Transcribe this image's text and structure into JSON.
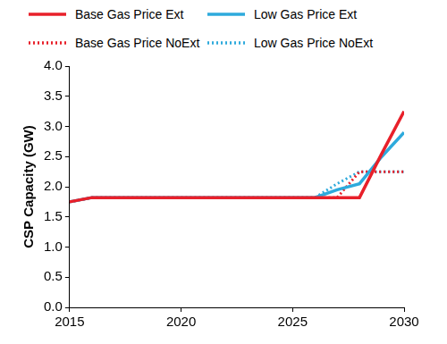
{
  "chart_data": {
    "type": "line",
    "y_label": "CSP Capacity (GW)",
    "legend": "top",
    "grid": false,
    "x": [
      2015,
      2016,
      2017,
      2018,
      2019,
      2020,
      2021,
      2022,
      2023,
      2024,
      2025,
      2026,
      2027,
      2028,
      2029,
      2030
    ],
    "xlim": [
      2015,
      2030
    ],
    "xticks": [
      2015,
      2020,
      2025,
      2030
    ],
    "ylim": [
      0,
      4
    ],
    "yticks": [
      {
        "value": 0,
        "label": "0.0"
      },
      {
        "value": 0.5,
        "label": "0.5"
      },
      {
        "value": 1,
        "label": "1.0"
      },
      {
        "value": 1.5,
        "label": "1.5"
      },
      {
        "value": 2,
        "label": "2.0"
      },
      {
        "value": 2.5,
        "label": "2.5"
      },
      {
        "value": 3,
        "label": "3.0"
      },
      {
        "value": 3.5,
        "label": "3.5"
      },
      {
        "value": 4,
        "label": "4.0"
      }
    ],
    "series": [
      {
        "name": "Base Gas Price Ext",
        "color": "#e8202a",
        "line_style": "solid",
        "values": [
          1.75,
          1.82,
          1.82,
          1.82,
          1.82,
          1.82,
          1.82,
          1.82,
          1.82,
          1.82,
          1.82,
          1.82,
          1.82,
          1.82,
          2.55,
          3.25
        ]
      },
      {
        "name": "Low Gas Price Ext",
        "color": "#2eaadc",
        "line_style": "solid",
        "values": [
          1.75,
          1.82,
          1.82,
          1.82,
          1.82,
          1.82,
          1.82,
          1.82,
          1.82,
          1.82,
          1.82,
          1.82,
          1.95,
          2.05,
          2.5,
          2.9
        ]
      },
      {
        "name": "Base Gas Price NoExt",
        "color": "#e8202a",
        "line_style": "dotted",
        "values": [
          1.75,
          1.82,
          1.82,
          1.82,
          1.82,
          1.82,
          1.82,
          1.82,
          1.82,
          1.82,
          1.82,
          1.82,
          1.82,
          2.25,
          2.25,
          2.25
        ]
      },
      {
        "name": "Low Gas Price NoExt",
        "color": "#2eaadc",
        "line_style": "dotted",
        "values": [
          1.75,
          1.82,
          1.82,
          1.82,
          1.82,
          1.82,
          1.82,
          1.82,
          1.82,
          1.82,
          1.82,
          1.82,
          2.05,
          2.25,
          2.25,
          2.25
        ]
      }
    ]
  }
}
